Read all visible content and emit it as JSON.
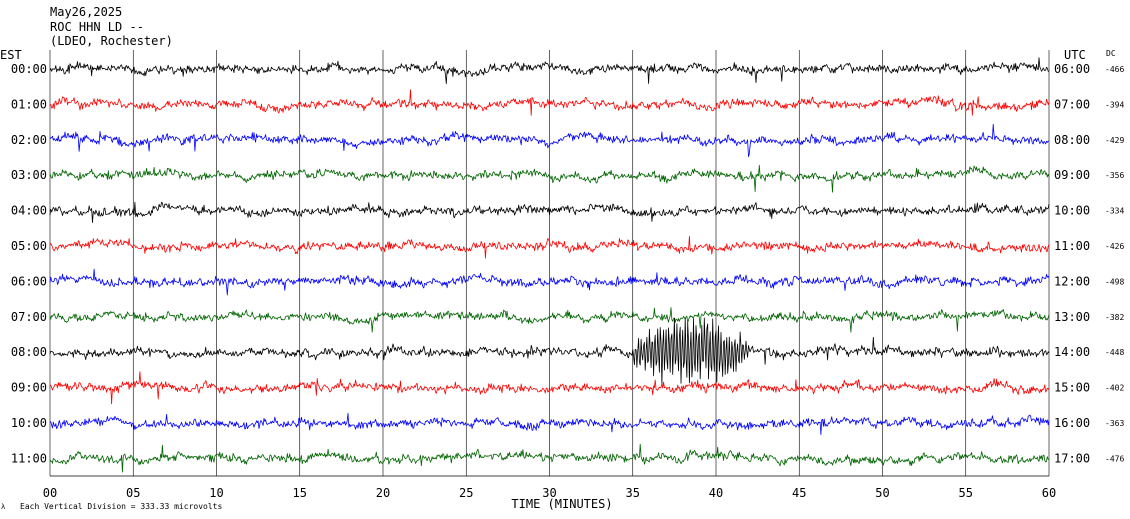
{
  "header": {
    "date": "May26,2025",
    "station": "ROC HHN LD --",
    "network": "(LDEO, Rochester)"
  },
  "left_axis_label": "EST",
  "right_axis_label": "UTC",
  "dc_label": "DC",
  "footer": {
    "scale_note": "Each Vertical Division =  333.33 microvolts"
  },
  "colors": {
    "black": "#000000",
    "red": "#ff0000",
    "blue": "#0000ff",
    "green": "#006400",
    "grid": "#000000"
  },
  "chart_data": {
    "type": "line",
    "title": "",
    "xlabel": "TIME (MINUTES)",
    "ylabel": "",
    "xlim": [
      0,
      60
    ],
    "x_ticks": [
      "00",
      "05",
      "10",
      "15",
      "20",
      "25",
      "30",
      "35",
      "40",
      "45",
      "50",
      "55",
      "60"
    ],
    "grid": "vertical lines every 5 minutes",
    "traces": [
      {
        "est": "00:00",
        "utc": "06:00",
        "dc": "-466",
        "color": "black"
      },
      {
        "est": "01:00",
        "utc": "07:00",
        "dc": "-394",
        "color": "red"
      },
      {
        "est": "02:00",
        "utc": "08:00",
        "dc": "-429",
        "color": "blue"
      },
      {
        "est": "03:00",
        "utc": "09:00",
        "dc": "-356",
        "color": "green"
      },
      {
        "est": "04:00",
        "utc": "10:00",
        "dc": "-334",
        "color": "black"
      },
      {
        "est": "05:00",
        "utc": "11:00",
        "dc": "-426",
        "color": "red"
      },
      {
        "est": "06:00",
        "utc": "12:00",
        "dc": "-498",
        "color": "blue"
      },
      {
        "est": "07:00",
        "utc": "13:00",
        "dc": "-382",
        "color": "green"
      },
      {
        "est": "08:00",
        "utc": "14:00",
        "dc": "-448",
        "color": "black"
      },
      {
        "est": "09:00",
        "utc": "15:00",
        "dc": "-402",
        "color": "red"
      },
      {
        "est": "10:00",
        "utc": "16:00",
        "dc": "-363",
        "color": "blue"
      },
      {
        "est": "11:00",
        "utc": "17:00",
        "dc": "-476",
        "color": "green"
      }
    ],
    "event": {
      "row": "08:00",
      "start_min": 35,
      "end_min": 42
    }
  }
}
